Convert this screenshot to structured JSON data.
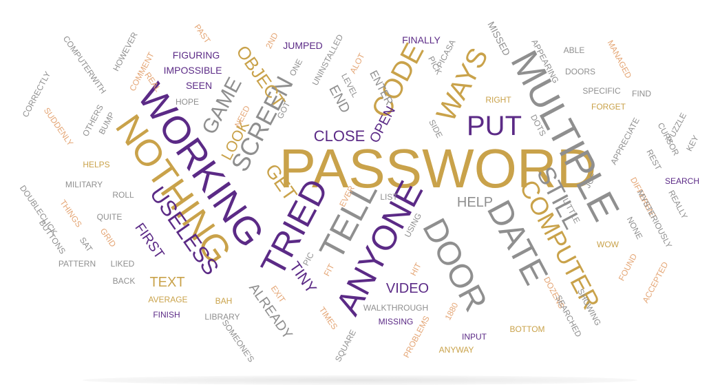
{
  "colors": {
    "gold": "#C9A24A",
    "purple": "#5B2A86",
    "gray": "#8F8F8F",
    "light_orange": "#E4A574",
    "background": "#FFFFFF"
  },
  "words": [
    {
      "text": "PASSWORD",
      "color": "gold"
    },
    {
      "text": "WORKING",
      "color": "purple"
    },
    {
      "text": "NOTHING",
      "color": "gold"
    },
    {
      "text": "MULTIPLE",
      "color": "gray"
    },
    {
      "text": "TRIED",
      "color": "purple"
    },
    {
      "text": "ANYONE",
      "color": "purple"
    },
    {
      "text": "TELL",
      "color": "gray"
    },
    {
      "text": "DOOR",
      "color": "gray"
    },
    {
      "text": "DATE",
      "color": "gray"
    },
    {
      "text": "COMPUTER",
      "color": "gold"
    },
    {
      "text": "PUT",
      "color": "purple"
    },
    {
      "text": "WAYS",
      "color": "gold"
    },
    {
      "text": "CODE",
      "color": "gold"
    },
    {
      "text": "SCREEN",
      "color": "gray"
    },
    {
      "text": "USELESS",
      "color": "purple"
    },
    {
      "text": "STILL",
      "color": "gray"
    },
    {
      "text": "GET",
      "color": "gold"
    },
    {
      "text": "GAME",
      "color": "gray"
    },
    {
      "text": "LOOK",
      "color": "gold"
    },
    {
      "text": "OBJECT",
      "color": "gold"
    },
    {
      "text": "CLOSE",
      "color": "purple"
    },
    {
      "text": "OPEN",
      "color": "purple"
    },
    {
      "text": "ENTER",
      "color": "gray"
    },
    {
      "text": "END",
      "color": "gray"
    },
    {
      "text": "VIDEO",
      "color": "purple"
    },
    {
      "text": "TEXT",
      "color": "gold"
    },
    {
      "text": "HELP",
      "color": "gray"
    },
    {
      "text": "FIRST",
      "color": "purple"
    },
    {
      "text": "TINY",
      "color": "purple"
    },
    {
      "text": "ALREADY",
      "color": "gray"
    },
    {
      "text": "IMPOSSIBLE",
      "color": "purple"
    },
    {
      "text": "FIGURING",
      "color": "purple"
    },
    {
      "text": "SEEN",
      "color": "purple"
    },
    {
      "text": "HOPE",
      "color": "gray"
    },
    {
      "text": "JUMPED",
      "color": "purple"
    },
    {
      "text": "FINALLY",
      "color": "purple"
    },
    {
      "text": "PICASA",
      "color": "gray"
    },
    {
      "text": "MISSED",
      "color": "gray"
    },
    {
      "text": "PICK",
      "color": "gray"
    },
    {
      "text": "UNINSTALLED",
      "color": "gray"
    },
    {
      "text": "ALOT",
      "color": "light_orange"
    },
    {
      "text": "LEVEL",
      "color": "gray"
    },
    {
      "text": "GOT",
      "color": "gray"
    },
    {
      "text": "NEED",
      "color": "light_orange"
    },
    {
      "text": "ONE",
      "color": "gray"
    },
    {
      "text": "2ND",
      "color": "light_orange"
    },
    {
      "text": "PAST",
      "color": "light_orange"
    },
    {
      "text": "HOWEVER",
      "color": "gray"
    },
    {
      "text": "COMMENT",
      "color": "light_orange"
    },
    {
      "text": "REAL",
      "color": "light_orange"
    },
    {
      "text": "COMPUTERWITH",
      "color": "gray"
    },
    {
      "text": "CORRECTLY",
      "color": "gray"
    },
    {
      "text": "SUDDENLY",
      "color": "light_orange"
    },
    {
      "text": "OTHERS",
      "color": "gray"
    },
    {
      "text": "BUMP",
      "color": "gray"
    },
    {
      "text": "HELPS",
      "color": "gold"
    },
    {
      "text": "MILITARY",
      "color": "gray"
    },
    {
      "text": "ROLL",
      "color": "gray"
    },
    {
      "text": "DOUBLECLICK",
      "color": "gray"
    },
    {
      "text": "THINGS",
      "color": "light_orange"
    },
    {
      "text": "QUITE",
      "color": "gray"
    },
    {
      "text": "BUTTONS",
      "color": "gray"
    },
    {
      "text": "SAT",
      "color": "gray"
    },
    {
      "text": "GRID",
      "color": "light_orange"
    },
    {
      "text": "PATTERN",
      "color": "gray"
    },
    {
      "text": "LIKED",
      "color": "gray"
    },
    {
      "text": "BACK",
      "color": "gray"
    },
    {
      "text": "AVERAGE",
      "color": "gold"
    },
    {
      "text": "FINISH",
      "color": "purple"
    },
    {
      "text": "BAH",
      "color": "gold"
    },
    {
      "text": "LIBRARY",
      "color": "gray"
    },
    {
      "text": "SOMEONE'S",
      "color": "gray"
    },
    {
      "text": "EXIT",
      "color": "light_orange"
    },
    {
      "text": "TIMES",
      "color": "light_orange"
    },
    {
      "text": "SQUARE",
      "color": "gray"
    },
    {
      "text": "WALKTHROUGH",
      "color": "gray"
    },
    {
      "text": "MISSING",
      "color": "purple"
    },
    {
      "text": "PROBLEMS",
      "color": "light_orange"
    },
    {
      "text": "1880",
      "color": "light_orange"
    },
    {
      "text": "INPUT",
      "color": "purple"
    },
    {
      "text": "ANYWAY",
      "color": "gold"
    },
    {
      "text": "BOTTOM",
      "color": "gold"
    },
    {
      "text": "PIC",
      "color": "gray"
    },
    {
      "text": "FIT",
      "color": "light_orange"
    },
    {
      "text": "EVER",
      "color": "light_orange"
    },
    {
      "text": "LIST",
      "color": "gray"
    },
    {
      "text": "USING",
      "color": "gray"
    },
    {
      "text": "HIT",
      "color": "light_orange"
    },
    {
      "text": "SIDE",
      "color": "gray"
    },
    {
      "text": "RIGHT",
      "color": "gold"
    },
    {
      "text": "DOTS",
      "color": "gray"
    },
    {
      "text": "APPEARING",
      "color": "gray"
    },
    {
      "text": "ABLE",
      "color": "gray"
    },
    {
      "text": "MANAGED",
      "color": "light_orange"
    },
    {
      "text": "DOORS",
      "color": "gray"
    },
    {
      "text": "SPECIFIC",
      "color": "gray"
    },
    {
      "text": "FIND",
      "color": "gray"
    },
    {
      "text": "FORGET",
      "color": "gold"
    },
    {
      "text": "APPRECIATE",
      "color": "gray"
    },
    {
      "text": "PUZZLE",
      "color": "gray"
    },
    {
      "text": "KEY",
      "color": "gray"
    },
    {
      "text": "CURSOR",
      "color": "gray"
    },
    {
      "text": "REST",
      "color": "gray"
    },
    {
      "text": "SEARCH",
      "color": "purple"
    },
    {
      "text": "JOE",
      "color": "gray"
    },
    {
      "text": "DIFFERENT",
      "color": "light_orange"
    },
    {
      "text": "REALLY",
      "color": "gray"
    },
    {
      "text": "LITTLE",
      "color": "gray"
    },
    {
      "text": "MYSTERIOUSLY",
      "color": "gray"
    },
    {
      "text": "NONE",
      "color": "gray"
    },
    {
      "text": "WOW",
      "color": "gold"
    },
    {
      "text": "FOUND",
      "color": "light_orange"
    },
    {
      "text": "ACCEPTED",
      "color": "light_orange"
    },
    {
      "text": "DOZENS",
      "color": "light_orange"
    },
    {
      "text": "SHOWING",
      "color": "gray"
    },
    {
      "text": "SEARCHED",
      "color": "gray"
    }
  ]
}
